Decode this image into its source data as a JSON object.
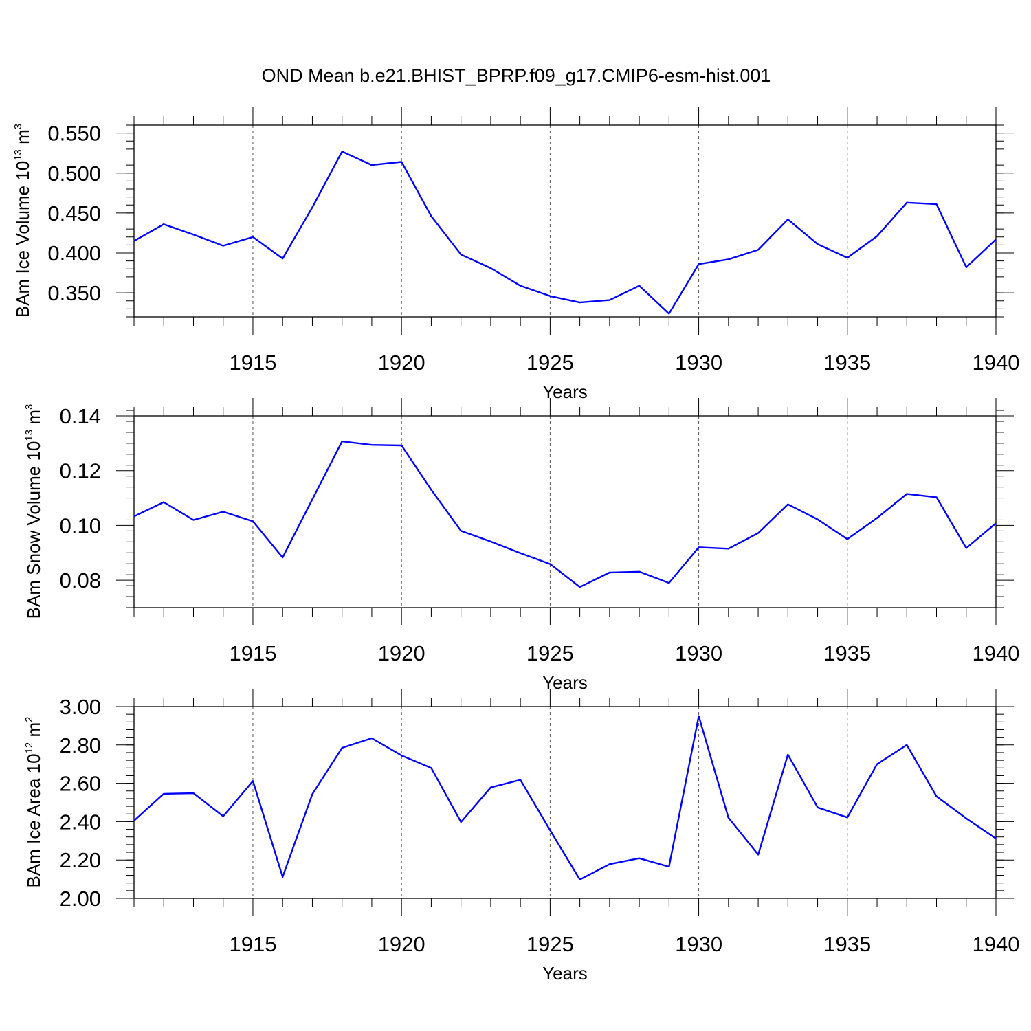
{
  "title": "OND Mean b.e21.BHIST_BPRP.f09_g17.CMIP6-esm-hist.001",
  "line_color": "#0000ff",
  "chart_data": [
    {
      "type": "line",
      "ylabel": {
        "text": "BAm Ice Volume 10",
        "sup": "13",
        "unit": " m",
        "unit_sup": "3"
      },
      "xlabel": "Years",
      "xlim": [
        1911,
        1940
      ],
      "ylim": [
        0.32,
        0.56
      ],
      "x_ticks": [
        1915,
        1920,
        1925,
        1930,
        1935,
        1940
      ],
      "x_tick_labels": [
        "1915",
        "1920",
        "1925",
        "1930",
        "1935",
        "1940"
      ],
      "y_ticks": [
        0.35,
        0.4,
        0.45,
        0.5,
        0.55
      ],
      "y_tick_labels": [
        "0.350",
        "0.400",
        "0.450",
        "0.500",
        "0.550"
      ],
      "y_minor_step": 0.01,
      "grid": "vertical dashed at major x ticks",
      "series": [
        {
          "x": [
            1911,
            1912,
            1913,
            1914,
            1915,
            1916,
            1917,
            1918,
            1919,
            1920,
            1921,
            1922,
            1923,
            1924,
            1925,
            1926,
            1927,
            1928,
            1929,
            1930,
            1931,
            1932,
            1933,
            1934,
            1935,
            1936,
            1937,
            1938,
            1939,
            1940
          ],
          "values": [
            0.415,
            0.436,
            0.423,
            0.409,
            0.42,
            0.393,
            0.457,
            0.527,
            0.51,
            0.514,
            0.446,
            0.398,
            0.381,
            0.359,
            0.346,
            0.338,
            0.341,
            0.359,
            0.324,
            0.386,
            0.392,
            0.404,
            0.442,
            0.411,
            0.394,
            0.421,
            0.463,
            0.461,
            0.382,
            0.417
          ]
        }
      ]
    },
    {
      "type": "line",
      "ylabel": {
        "text": "BAm Snow Volume 10",
        "sup": "13",
        "unit": " m",
        "unit_sup": "3"
      },
      "xlabel": "Years",
      "xlim": [
        1911,
        1940
      ],
      "ylim": [
        0.07,
        0.14
      ],
      "x_ticks": [
        1915,
        1920,
        1925,
        1930,
        1935,
        1940
      ],
      "x_tick_labels": [
        "1915",
        "1920",
        "1925",
        "1930",
        "1935",
        "1940"
      ],
      "y_ticks": [
        0.08,
        0.1,
        0.12,
        0.14
      ],
      "y_tick_labels": [
        "0.08",
        "0.10",
        "0.12",
        "0.14"
      ],
      "y_minor_step": 0.004,
      "grid": "vertical dashed at major x ticks",
      "series": [
        {
          "x": [
            1911,
            1912,
            1913,
            1914,
            1915,
            1916,
            1917,
            1918,
            1919,
            1920,
            1921,
            1922,
            1923,
            1924,
            1925,
            1926,
            1927,
            1928,
            1929,
            1930,
            1931,
            1932,
            1933,
            1934,
            1935,
            1936,
            1937,
            1938,
            1939,
            1940
          ],
          "values": [
            0.1033,
            0.1085,
            0.102,
            0.105,
            0.1015,
            0.0883,
            0.1095,
            0.1307,
            0.1294,
            0.1292,
            0.113,
            0.098,
            0.0941,
            0.0899,
            0.0859,
            0.0775,
            0.0828,
            0.0831,
            0.079,
            0.092,
            0.0915,
            0.0972,
            0.1077,
            0.1022,
            0.095,
            0.1027,
            0.1115,
            0.1103,
            0.0917,
            0.1008
          ]
        }
      ]
    },
    {
      "type": "line",
      "ylabel": {
        "text": "BAm Ice Area 10",
        "sup": "12",
        "unit": " m",
        "unit_sup": "2"
      },
      "xlabel": "Years",
      "xlim": [
        1911,
        1940
      ],
      "ylim": [
        2.0,
        3.0
      ],
      "x_ticks": [
        1915,
        1920,
        1925,
        1930,
        1935,
        1940
      ],
      "x_tick_labels": [
        "1915",
        "1920",
        "1925",
        "1930",
        "1935",
        "1940"
      ],
      "y_ticks": [
        2.0,
        2.2,
        2.4,
        2.6,
        2.8,
        3.0
      ],
      "y_tick_labels": [
        "2.00",
        "2.20",
        "2.40",
        "2.60",
        "2.80",
        "3.00"
      ],
      "y_minor_step": 0.04,
      "grid": "vertical dashed at major x ticks",
      "series": [
        {
          "x": [
            1911,
            1912,
            1913,
            1914,
            1915,
            1916,
            1917,
            1918,
            1919,
            1920,
            1921,
            1922,
            1923,
            1924,
            1925,
            1926,
            1927,
            1928,
            1929,
            1930,
            1931,
            1932,
            1933,
            1934,
            1935,
            1936,
            1937,
            1938,
            1939,
            1940
          ],
          "values": [
            2.405,
            2.545,
            2.548,
            2.428,
            2.612,
            2.112,
            2.543,
            2.785,
            2.835,
            2.745,
            2.68,
            2.398,
            2.578,
            2.618,
            2.355,
            2.098,
            2.178,
            2.209,
            2.165,
            2.95,
            2.42,
            2.228,
            2.75,
            2.474,
            2.422,
            2.7,
            2.8,
            2.532,
            2.417,
            2.312
          ]
        }
      ]
    }
  ]
}
